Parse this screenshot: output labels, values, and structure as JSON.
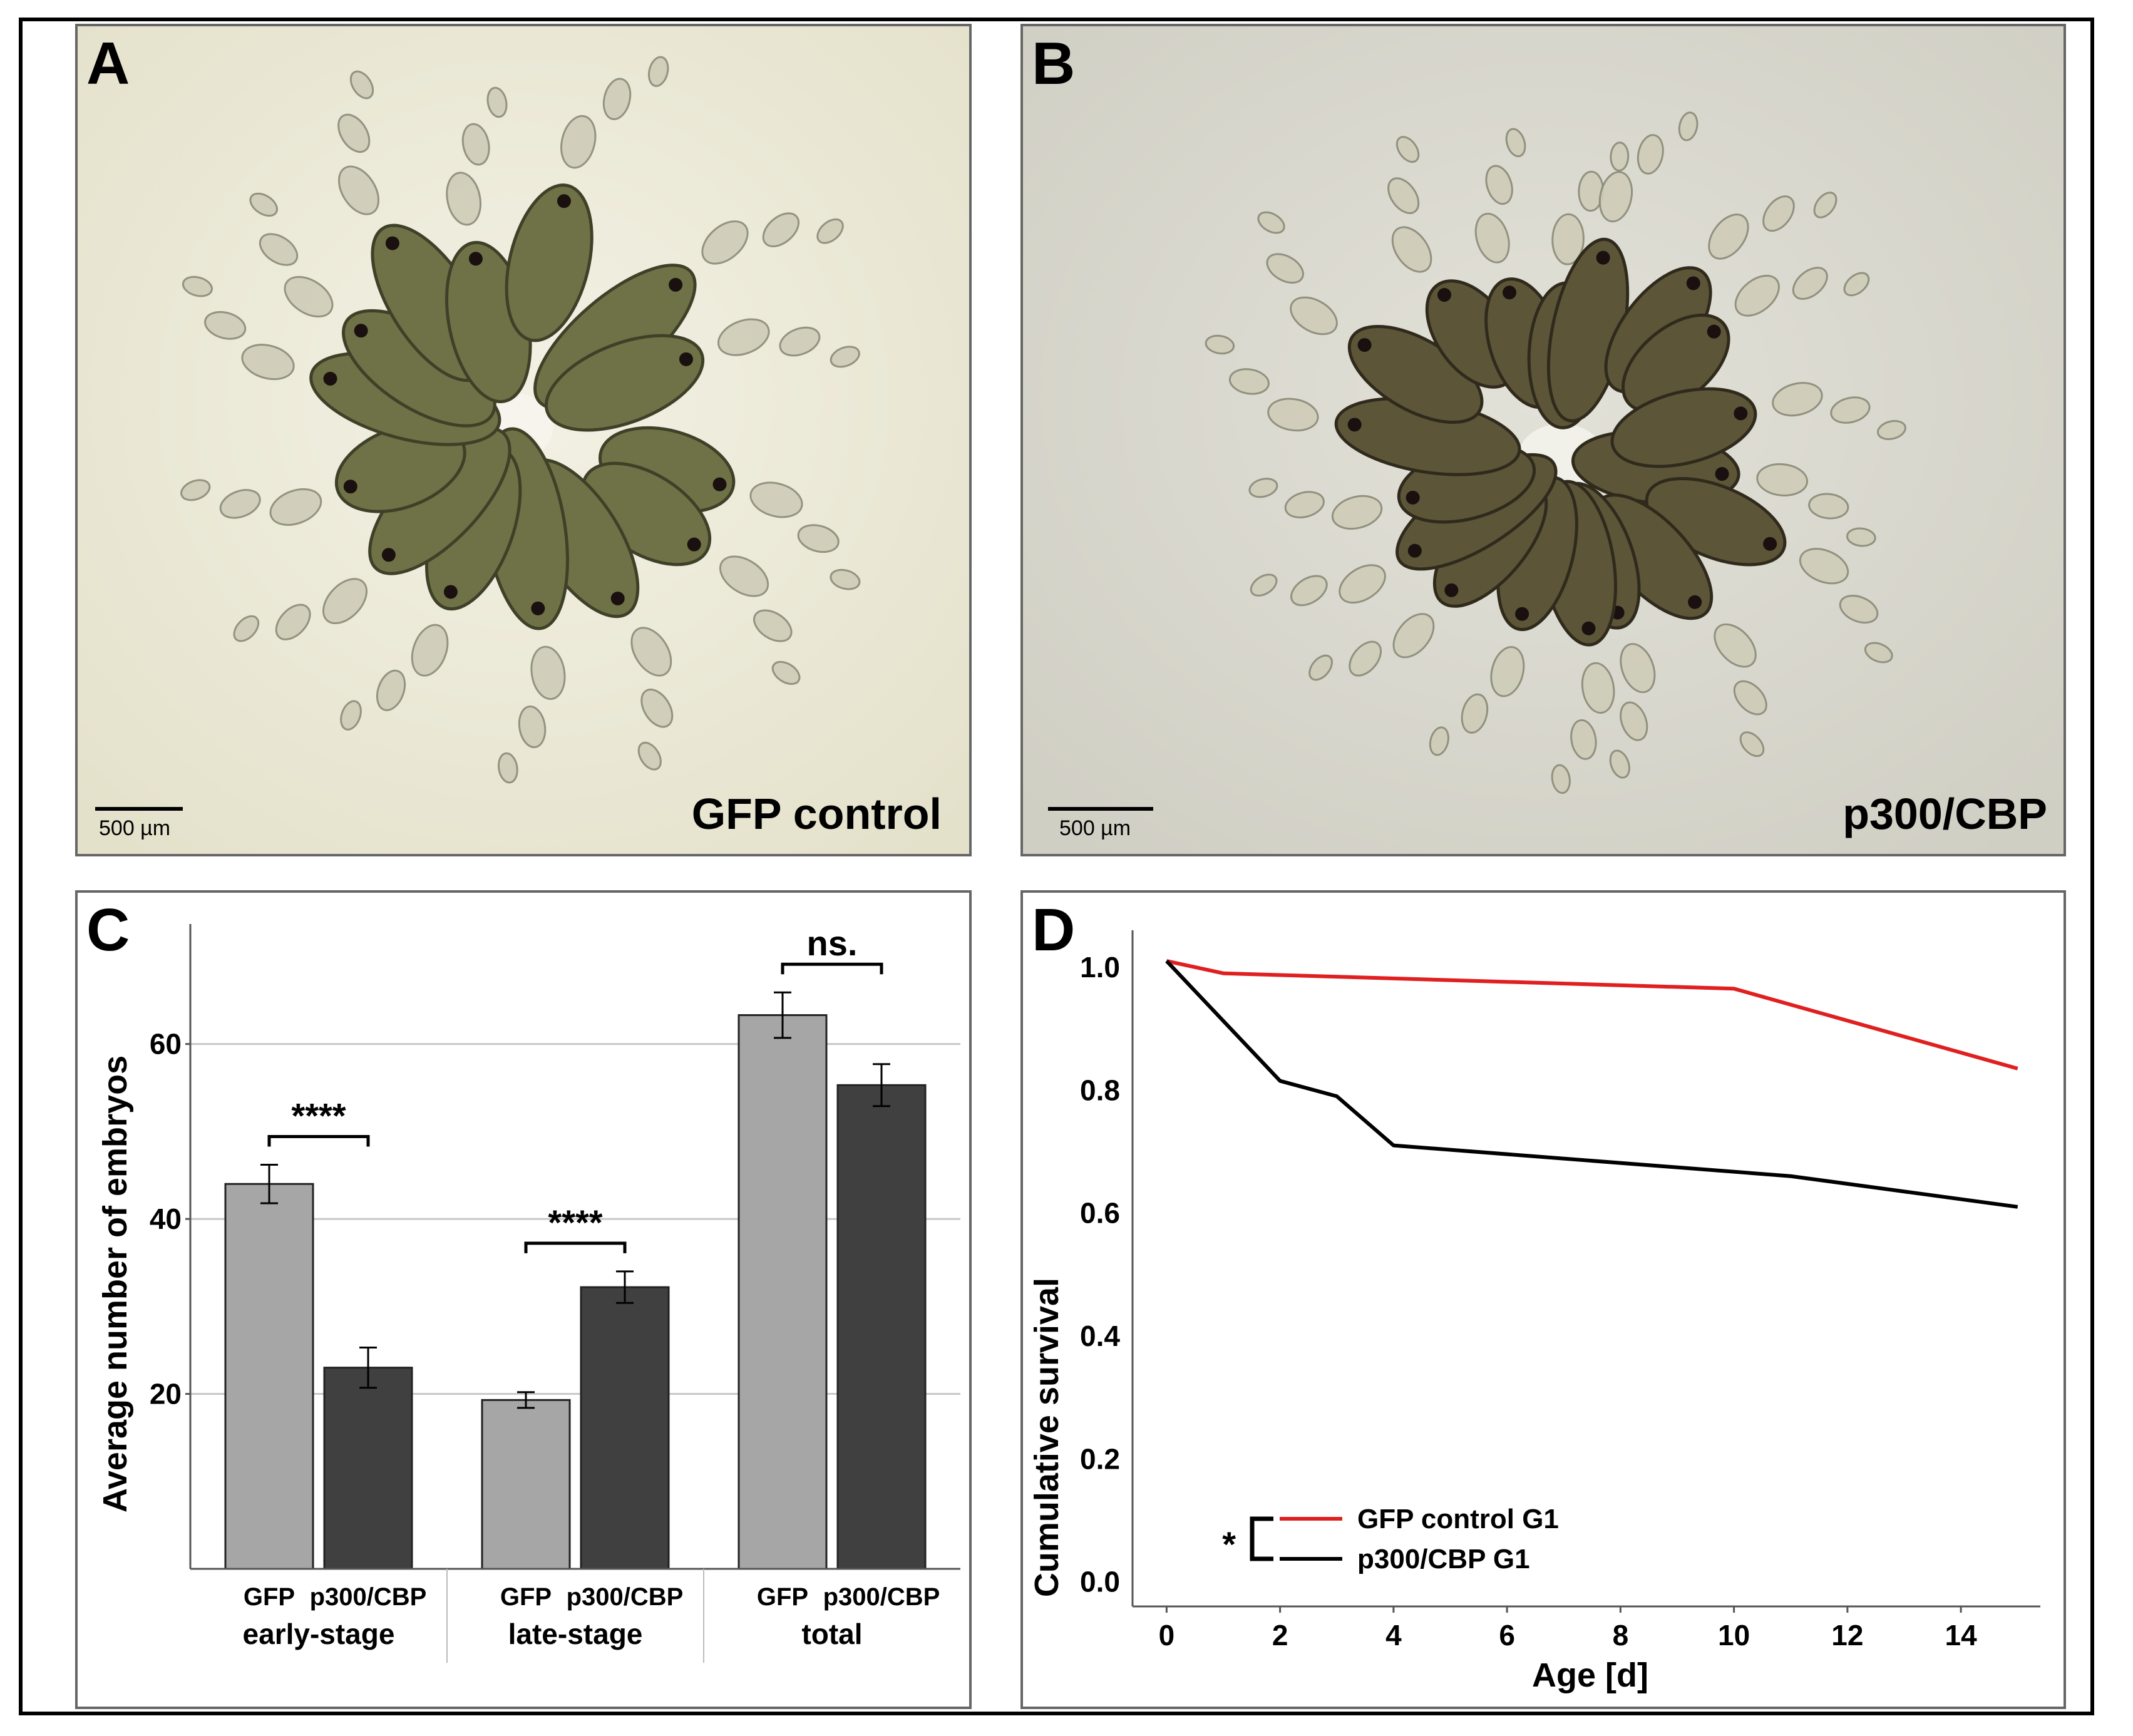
{
  "panels": {
    "a": {
      "letter": "A",
      "caption": "GFP control",
      "scale_label": "500 µm"
    },
    "b": {
      "letter": "B",
      "caption": "p300/CBP",
      "scale_label": "500 µm"
    },
    "c": {
      "letter": "C"
    },
    "d": {
      "letter": "D"
    }
  },
  "colors": {
    "gfp_bar": "#a6a6a6",
    "p300_bar": "#404040",
    "gfp_line": "#e02020",
    "p300_line": "#000000",
    "photo_a_bg": "#ece9d6",
    "photo_b_bg": "#dad9cf"
  },
  "chart_data": [
    {
      "type": "bar",
      "ylabel": "Average number of embryos",
      "ylim": [
        0,
        73
      ],
      "yticks": [
        20,
        40,
        60
      ],
      "grid": true,
      "groups": [
        "early-stage",
        "late-stage",
        "total"
      ],
      "bar_labels": [
        "GFP",
        "p300/CBP"
      ],
      "series": [
        {
          "name": "GFP",
          "values": [
            44,
            19.3,
            63.3
          ],
          "errors": [
            2.2,
            0.9,
            2.6
          ]
        },
        {
          "name": "p300/CBP",
          "values": [
            23,
            32.2,
            55.3
          ],
          "errors": [
            2.3,
            1.8,
            2.4
          ]
        }
      ],
      "significance": [
        {
          "group": "early-stage",
          "label": "****"
        },
        {
          "group": "late-stage",
          "label": "****"
        },
        {
          "group": "total",
          "label": "ns."
        }
      ]
    },
    {
      "type": "line",
      "xlabel": "Age [d]",
      "ylabel": "Cumulative survival",
      "xlim": [
        -0.6,
        15.4
      ],
      "ylim": [
        -0.04,
        1.06
      ],
      "xticks": [
        0,
        2,
        4,
        6,
        8,
        10,
        12,
        14
      ],
      "yticks": [
        0.0,
        0.2,
        0.4,
        0.6,
        0.8,
        1.0
      ],
      "ytick_labels": [
        "0.0",
        "0.2",
        "0.4",
        "0.6",
        "0.8",
        "1.0"
      ],
      "series": [
        {
          "name": "GFP control G1",
          "x": [
            0,
            1,
            10,
            15
          ],
          "y": [
            1.01,
            0.99,
            0.965,
            0.835
          ]
        },
        {
          "name": "p300/CBP G1",
          "x": [
            0,
            2,
            3,
            4,
            11,
            15
          ],
          "y": [
            1.01,
            0.815,
            0.79,
            0.71,
            0.66,
            0.61
          ]
        }
      ],
      "legend": {
        "position": "bottom-left",
        "significance": "*"
      }
    }
  ]
}
